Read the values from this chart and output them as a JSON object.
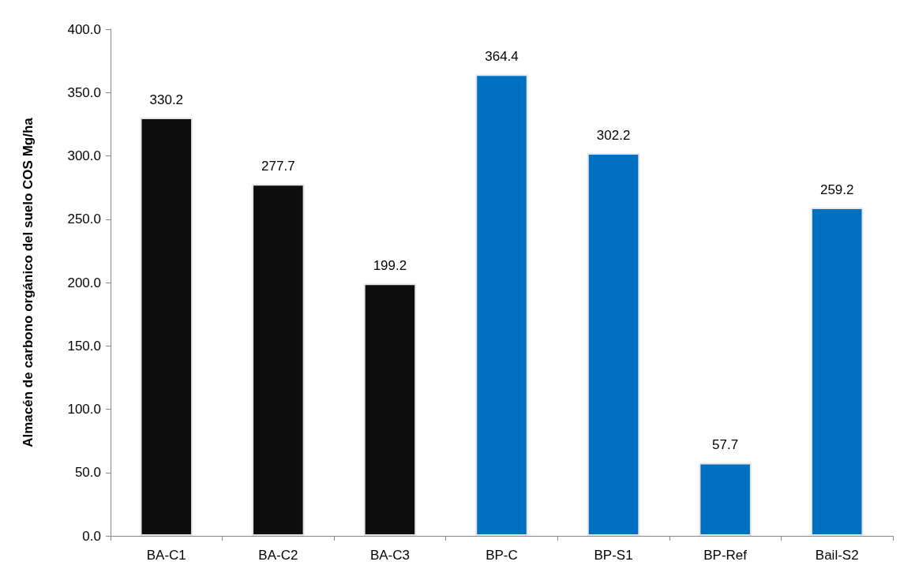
{
  "chart_data": {
    "type": "bar",
    "ylabel": "Almacén de carbono orgánico del suelo COS Mg/ha",
    "categories": [
      "BA-C1",
      "BA-C2",
      "BA-C3",
      "BP-C",
      "BP-S1",
      "BP-Ref",
      "Bail-S2"
    ],
    "values": [
      330.2,
      277.7,
      199.2,
      364.4,
      302.2,
      57.7,
      259.2
    ],
    "colors": [
      "#0d0d0d",
      "#0d0d0d",
      "#0d0d0d",
      "#0070c0",
      "#0070c0",
      "#0070c0",
      "#0070c0"
    ],
    "ylim": [
      0,
      400
    ],
    "yticks": [
      {
        "value": 0,
        "label": "0.0"
      },
      {
        "value": 50,
        "label": "50.0"
      },
      {
        "value": 100,
        "label": "100.0"
      },
      {
        "value": 150,
        "label": "150.0"
      },
      {
        "value": 200,
        "label": "200.0"
      },
      {
        "value": 250,
        "label": "250.0"
      },
      {
        "value": 300,
        "label": "300.0"
      },
      {
        "value": 350,
        "label": "350.0"
      },
      {
        "value": 400,
        "label": "400.0"
      }
    ],
    "data_labels": true
  }
}
